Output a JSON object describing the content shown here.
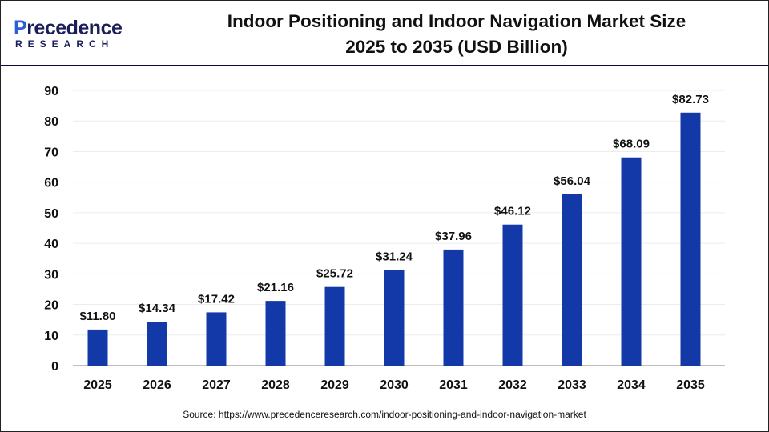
{
  "logo": {
    "text_main": "Precedence",
    "text_sub": "RESEARCH"
  },
  "title_line1": "Indoor Positioning and Indoor Navigation Market Size",
  "title_line2": "2025 to 2035 (USD Billion)",
  "source": "Source: https://www.precedenceresearch.com/indoor-positioning-and-indoor-navigation-market",
  "colors": {
    "bar": "#1338a8",
    "grid": "#ececec",
    "axis": "#bdbdbd",
    "separator": "#0b0b3b"
  },
  "chart_data": {
    "type": "bar",
    "title": "Indoor Positioning and Indoor Navigation Market Size 2025 to 2035 (USD Billion)",
    "categories": [
      "2025",
      "2026",
      "2027",
      "2028",
      "2029",
      "2030",
      "2031",
      "2032",
      "2033",
      "2034",
      "2035"
    ],
    "values": [
      11.8,
      14.34,
      17.42,
      21.16,
      25.72,
      31.24,
      37.96,
      46.12,
      56.04,
      68.09,
      82.73
    ],
    "data_labels": [
      "$11.80",
      "$14.34",
      "$17.42",
      "$21.16",
      "$25.72",
      "$31.24",
      "$37.96",
      "$46.12",
      "$56.04",
      "$68.09",
      "$82.73"
    ],
    "yticks": [
      0,
      10,
      20,
      30,
      40,
      50,
      60,
      70,
      80,
      90
    ],
    "ylim": [
      0,
      90
    ],
    "xlabel": "",
    "ylabel": "",
    "grid": true,
    "legend": "none"
  }
}
